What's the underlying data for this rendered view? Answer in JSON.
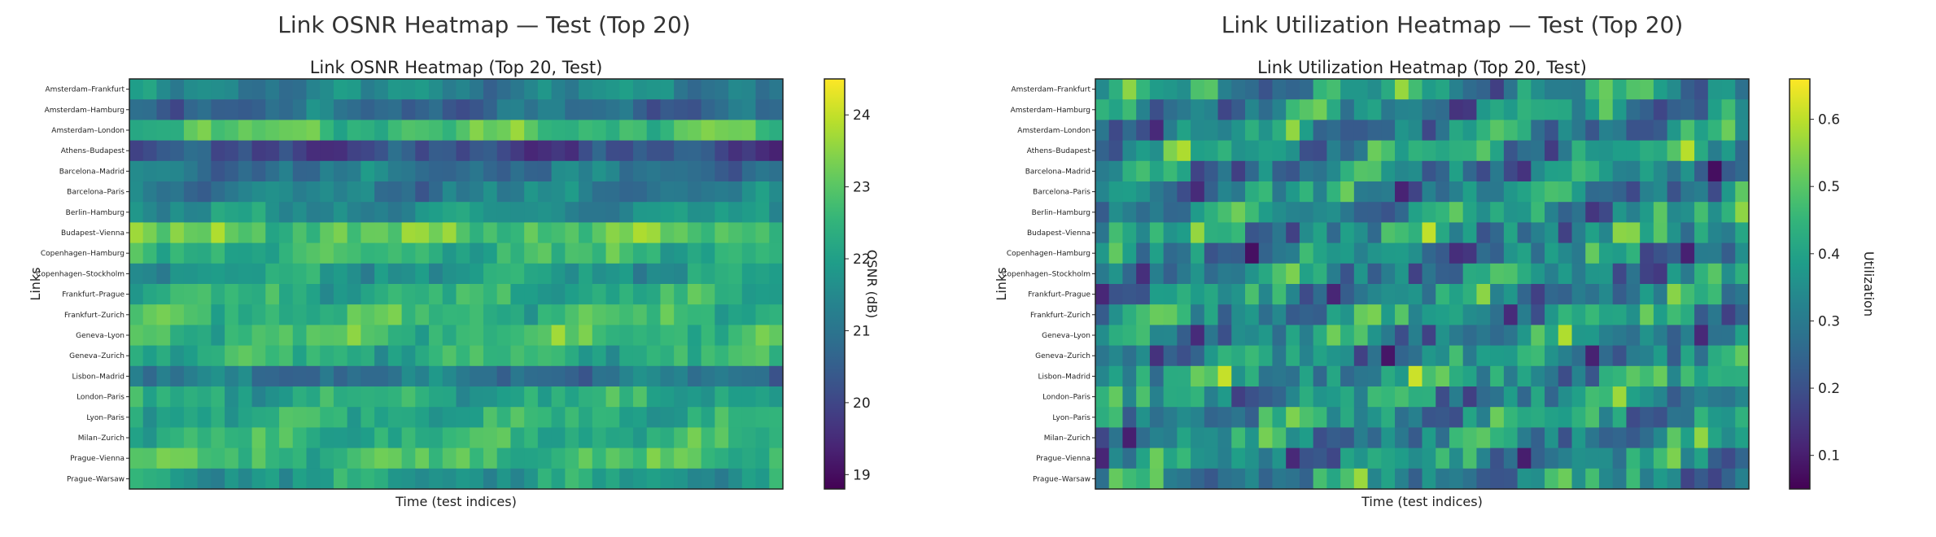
{
  "charts": [
    {
      "suptitle": "Link OSNR Heatmap — Test (Top 20)",
      "chart_data": {
        "type": "heatmap",
        "title": "Link OSNR Heatmap (Top 20, Test)",
        "xlabel": "Time (test indices)",
        "ylabel": "Links",
        "colorbar_label": "OSNR (dB)",
        "colormap": "viridis",
        "vmin": 18.8,
        "vmax": 24.5,
        "colorbar_ticks": [
          19,
          20,
          21,
          22,
          23,
          24
        ],
        "n_time": 48,
        "rows": [
          "Amsterdam–Frankfurt",
          "Amsterdam–Hamburg",
          "Amsterdam–London",
          "Athens–Budapest",
          "Barcelona–Madrid",
          "Barcelona–Paris",
          "Berlin–Hamburg",
          "Budapest–Vienna",
          "Copenhagen–Hamburg",
          "Copenhagen–Stockholm",
          "Frankfurt–Prague",
          "Frankfurt–Zurich",
          "Geneva–Lyon",
          "Geneva–Zurich",
          "Lisbon–Madrid",
          "London–Paris",
          "Lyon–Paris",
          "Milan–Zurich",
          "Prague–Vienna",
          "Prague–Warsaw"
        ],
        "row_means": [
          21.4,
          20.8,
          22.8,
          20.1,
          21.0,
          21.2,
          21.6,
          23.0,
          22.5,
          21.9,
          22.3,
          22.6,
          22.7,
          22.4,
          21.0,
          22.2,
          22.3,
          22.4,
          22.7,
          21.9
        ],
        "amplitude": 0.9
      }
    },
    {
      "suptitle": "Link Utilization Heatmap — Test (Top 20)",
      "chart_data": {
        "type": "heatmap",
        "title": "Link Utilization Heatmap (Top 20, Test)",
        "xlabel": "Time (test indices)",
        "ylabel": "Links",
        "colorbar_label": "Utilization",
        "colormap": "viridis",
        "vmin": 0.05,
        "vmax": 0.66,
        "colorbar_ticks": [
          0.1,
          0.2,
          0.3,
          0.4,
          0.5,
          0.6
        ],
        "n_time": 48,
        "rows": [
          "Amsterdam–Frankfurt",
          "Amsterdam–Hamburg",
          "Amsterdam–London",
          "Athens–Budapest",
          "Barcelona–Madrid",
          "Barcelona–Paris",
          "Berlin–Hamburg",
          "Budapest–Vienna",
          "Copenhagen–Hamburg",
          "Copenhagen–Stockholm",
          "Frankfurt–Prague",
          "Frankfurt–Zurich",
          "Geneva–Lyon",
          "Geneva–Zurich",
          "Lisbon–Madrid",
          "London–Paris",
          "Lyon–Paris",
          "Milan–Zurich",
          "Prague–Vienna",
          "Prague–Warsaw"
        ],
        "row_means": [
          0.36,
          0.34,
          0.33,
          0.37,
          0.32,
          0.33,
          0.35,
          0.36,
          0.31,
          0.34,
          0.33,
          0.36,
          0.34,
          0.33,
          0.38,
          0.35,
          0.36,
          0.34,
          0.33,
          0.34
        ],
        "amplitude": 0.22
      }
    }
  ]
}
